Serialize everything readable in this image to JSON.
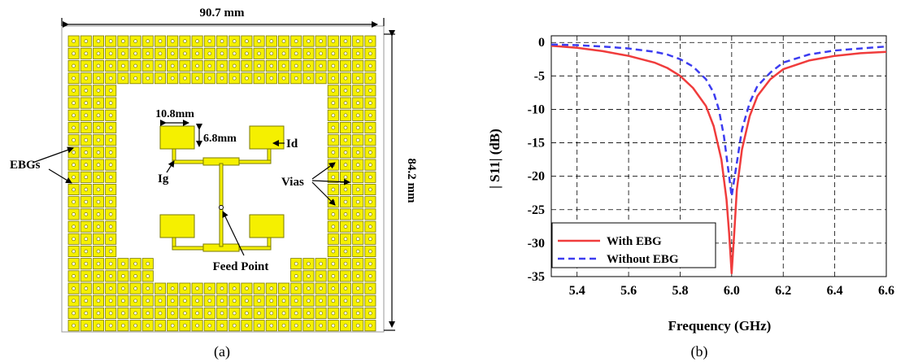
{
  "panel_a": {
    "width_label": "90.7 mm",
    "height_label": "84.2 mm",
    "patch_width_label": "10.8mm",
    "patch_height_label": "6.8mm",
    "label_ebgs": "EBGs",
    "label_vias": "Vias",
    "label_id": "Id",
    "label_ig": "Ig",
    "label_feed": "Feed Point",
    "caption": "(a)",
    "colors": {
      "ebg_fill": "#f5f000",
      "ebg_stroke": "#7a7a00",
      "board_border": "#9a9a9a"
    }
  },
  "panel_b": {
    "caption": "(b)"
  },
  "chart_data": {
    "type": "line",
    "title": "",
    "xlabel": "Frequency (GHz)",
    "ylabel": "| S11| (dB)",
    "xlim": [
      5.3,
      6.6
    ],
    "ylim": [
      -35,
      1
    ],
    "xticks": [
      "5.4",
      "5.6",
      "5.8",
      "6.0",
      "6.2",
      "6.4",
      "6.6"
    ],
    "yticks": [
      "0",
      "-5",
      "-10",
      "-15",
      "-20",
      "-25",
      "-30",
      "-35"
    ],
    "grid": true,
    "legend_position": "bottom-left",
    "series": [
      {
        "name": "With EBG",
        "color": "#f03c3c",
        "style": "solid",
        "x": [
          5.3,
          5.4,
          5.5,
          5.6,
          5.7,
          5.75,
          5.8,
          5.85,
          5.9,
          5.93,
          5.96,
          5.98,
          5.99,
          6.0,
          6.01,
          6.02,
          6.04,
          6.07,
          6.1,
          6.15,
          6.2,
          6.3,
          6.4,
          6.5,
          6.6
        ],
        "y": [
          -0.5,
          -0.8,
          -1.3,
          -2.0,
          -3.0,
          -3.8,
          -5.0,
          -6.8,
          -9.5,
          -12.5,
          -17.5,
          -23.5,
          -28.5,
          -34.5,
          -28.5,
          -22.0,
          -16.0,
          -11.0,
          -8.0,
          -5.5,
          -4.0,
          -2.7,
          -2.0,
          -1.6,
          -1.4
        ]
      },
      {
        "name": "Without EBG",
        "color": "#3c3cf0",
        "style": "dashed",
        "x": [
          5.3,
          5.4,
          5.5,
          5.6,
          5.7,
          5.75,
          5.8,
          5.85,
          5.9,
          5.93,
          5.95,
          5.97,
          5.99,
          6.0,
          6.02,
          6.04,
          6.07,
          6.1,
          6.15,
          6.2,
          6.3,
          6.4,
          6.5,
          6.6
        ],
        "y": [
          -0.3,
          -0.4,
          -0.6,
          -0.9,
          -1.4,
          -1.8,
          -2.5,
          -3.6,
          -5.5,
          -7.5,
          -10.0,
          -14.0,
          -20.0,
          -23.0,
          -18.0,
          -13.0,
          -9.0,
          -6.5,
          -4.5,
          -3.0,
          -1.8,
          -1.2,
          -0.9,
          -0.6
        ]
      }
    ]
  }
}
